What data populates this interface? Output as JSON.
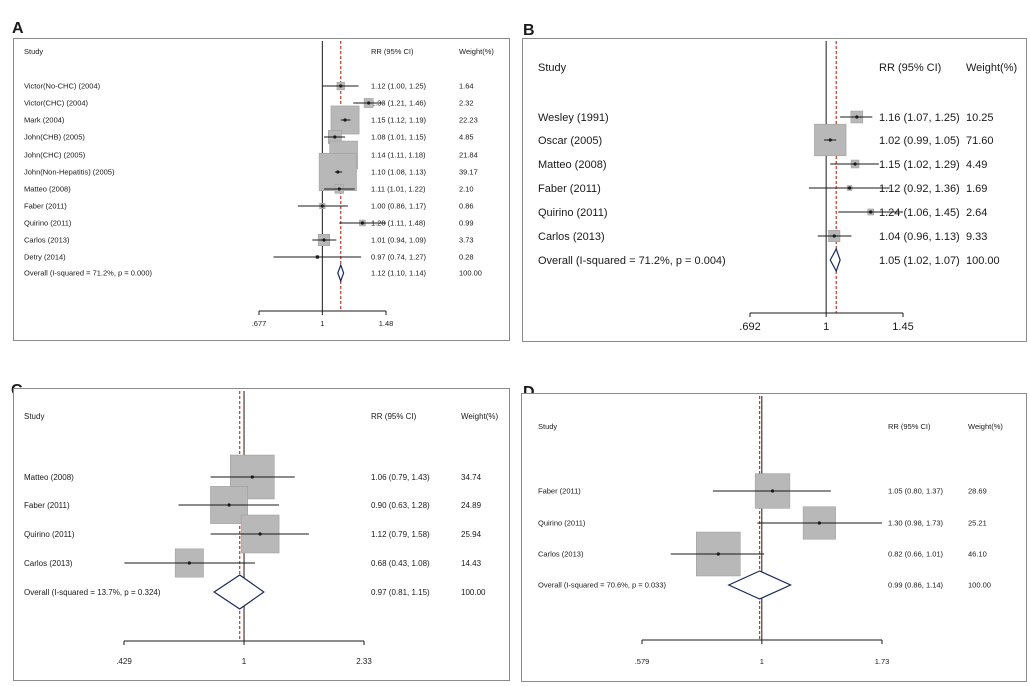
{
  "chart_data": [
    {
      "type": "forest",
      "panel_label": "A",
      "header": {
        "study": "Study",
        "rr": "RR (95% CI)",
        "weight": "Weight(%)"
      },
      "xlim": [
        0.677,
        1.48
      ],
      "xticks": [
        0.677,
        1,
        1.48
      ],
      "xtick_labels": [
        ".677",
        "1",
        "1.48"
      ],
      "studies": [
        {
          "label": "Victor(No-CHC) (2004)",
          "rr": 1.12,
          "lo": 1.0,
          "hi": 1.25,
          "ci_text": "1.12 (1.00, 1.25)",
          "weight": 1.64,
          "weight_text": "1.64"
        },
        {
          "label": "Victor(CHC) (2004)",
          "rr": 1.33,
          "lo": 1.21,
          "hi": 1.46,
          "ci_text": "1.33 (1.21, 1.46)",
          "weight": 2.32,
          "weight_text": "2.32"
        },
        {
          "label": "Mark (2004)",
          "rr": 1.15,
          "lo": 1.12,
          "hi": 1.19,
          "ci_text": "1.15 (1.12, 1.19)",
          "weight": 22.23,
          "weight_text": "22.23"
        },
        {
          "label": "John(CHB) (2005)",
          "rr": 1.08,
          "lo": 1.01,
          "hi": 1.15,
          "ci_text": "1.08 (1.01, 1.15)",
          "weight": 4.85,
          "weight_text": "4.85"
        },
        {
          "label": "John(CHC) (2005)",
          "rr": 1.14,
          "lo": 1.11,
          "hi": 1.18,
          "ci_text": "1.14 (1.11, 1.18)",
          "weight": 21.84,
          "weight_text": "21.84"
        },
        {
          "label": "John(Non-Hepatitis) (2005)",
          "rr": 1.1,
          "lo": 1.08,
          "hi": 1.13,
          "ci_text": "1.10 (1.08, 1.13)",
          "weight": 39.17,
          "weight_text": "39.17"
        },
        {
          "label": "Matteo (2008)",
          "rr": 1.11,
          "lo": 1.01,
          "hi": 1.22,
          "ci_text": "1.11 (1.01, 1.22)",
          "weight": 2.1,
          "weight_text": "2.10"
        },
        {
          "label": "Faber (2011)",
          "rr": 1.0,
          "lo": 0.86,
          "hi": 1.17,
          "ci_text": "1.00 (0.86, 1.17)",
          "weight": 0.86,
          "weight_text": "0.86"
        },
        {
          "label": "Quirino (2011)",
          "rr": 1.28,
          "lo": 1.11,
          "hi": 1.48,
          "ci_text": "1.28 (1.11, 1.48)",
          "weight": 0.99,
          "weight_text": "0.99"
        },
        {
          "label": "Carlos (2013)",
          "rr": 1.01,
          "lo": 0.94,
          "hi": 1.09,
          "ci_text": "1.01 (0.94, 1.09)",
          "weight": 3.73,
          "weight_text": "3.73"
        },
        {
          "label": "Detry (2014)",
          "rr": 0.97,
          "lo": 0.74,
          "hi": 1.27,
          "ci_text": "0.97 (0.74, 1.27)",
          "weight": 0.28,
          "weight_text": "0.28"
        }
      ],
      "overall": {
        "label": "Overall  (I-squared = 71.2%, p = 0.000)",
        "rr": 1.12,
        "lo": 1.1,
        "hi": 1.14,
        "ci_text": "1.12 (1.10, 1.14)",
        "weight_text": "100.00"
      }
    },
    {
      "type": "forest",
      "panel_label": "B",
      "header": {
        "study": "Study",
        "rr": "RR (95% CI)",
        "weight": "Weight(%)"
      },
      "xlim": [
        0.692,
        1.45
      ],
      "xticks": [
        0.692,
        1,
        1.45
      ],
      "xtick_labels": [
        ".692",
        "1",
        "1.45"
      ],
      "studies": [
        {
          "label": "Wesley (1991)",
          "rr": 1.16,
          "lo": 1.07,
          "hi": 1.25,
          "ci_text": "1.16 (1.07, 1.25)",
          "weight": 10.25,
          "weight_text": "10.25"
        },
        {
          "label": "Oscar (2005)",
          "rr": 1.02,
          "lo": 0.99,
          "hi": 1.05,
          "ci_text": "1.02 (0.99, 1.05)",
          "weight": 71.6,
          "weight_text": "71.60"
        },
        {
          "label": "Matteo (2008)",
          "rr": 1.15,
          "lo": 1.02,
          "hi": 1.29,
          "ci_text": "1.15 (1.02, 1.29)",
          "weight": 4.49,
          "weight_text": "4.49"
        },
        {
          "label": "Faber (2011)",
          "rr": 1.12,
          "lo": 0.92,
          "hi": 1.36,
          "ci_text": "1.12 (0.92, 1.36)",
          "weight": 1.69,
          "weight_text": "1.69"
        },
        {
          "label": "Quirino (2011)",
          "rr": 1.24,
          "lo": 1.06,
          "hi": 1.45,
          "ci_text": "1.24 (1.06, 1.45)",
          "weight": 2.64,
          "weight_text": "2.64"
        },
        {
          "label": "Carlos (2013)",
          "rr": 1.04,
          "lo": 0.96,
          "hi": 1.13,
          "ci_text": "1.04 (0.96, 1.13)",
          "weight": 9.33,
          "weight_text": "9.33"
        }
      ],
      "overall": {
        "label": "Overall  (I-squared = 71.2%, p = 0.004)",
        "rr": 1.05,
        "lo": 1.02,
        "hi": 1.07,
        "ci_text": "1.05 (1.02, 1.07)",
        "weight_text": "100.00"
      }
    },
    {
      "type": "forest",
      "panel_label": "C",
      "header": {
        "study": "Study",
        "rr": "RR (95% CI)",
        "weight": "Weight(%)"
      },
      "xlim": [
        0.429,
        2.33
      ],
      "xticks": [
        0.429,
        1,
        2.33
      ],
      "xtick_labels": [
        ".429",
        "1",
        "2.33"
      ],
      "studies": [
        {
          "label": "Matteo (2008)",
          "rr": 1.06,
          "lo": 0.79,
          "hi": 1.43,
          "ci_text": "1.06 (0.79, 1.43)",
          "weight": 34.74,
          "weight_text": "34.74"
        },
        {
          "label": "Faber (2011)",
          "rr": 0.9,
          "lo": 0.63,
          "hi": 1.28,
          "ci_text": "0.90 (0.63, 1.28)",
          "weight": 24.89,
          "weight_text": "24.89"
        },
        {
          "label": "Quirino (2011)",
          "rr": 1.12,
          "lo": 0.79,
          "hi": 1.58,
          "ci_text": "1.12 (0.79, 1.58)",
          "weight": 25.94,
          "weight_text": "25.94"
        },
        {
          "label": "Carlos (2013)",
          "rr": 0.68,
          "lo": 0.43,
          "hi": 1.08,
          "ci_text": "0.68 (0.43, 1.08)",
          "weight": 14.43,
          "weight_text": "14.43"
        }
      ],
      "overall": {
        "label": "Overall  (I-squared = 13.7%, p = 0.324)",
        "rr": 0.97,
        "lo": 0.81,
        "hi": 1.15,
        "ci_text": "0.97 (0.81, 1.15)",
        "weight_text": "100.00"
      }
    },
    {
      "type": "forest",
      "panel_label": "D",
      "header": {
        "study": "Study",
        "rr": "RR (95% CI)",
        "weight": "Weight(%)"
      },
      "xlim": [
        0.579,
        1.73
      ],
      "xticks": [
        0.579,
        1,
        1.73
      ],
      "xtick_labels": [
        ".579",
        "1",
        "1.73"
      ],
      "studies": [
        {
          "label": "Faber (2011)",
          "rr": 1.05,
          "lo": 0.8,
          "hi": 1.37,
          "ci_text": "1.05 (0.80, 1.37)",
          "weight": 28.69,
          "weight_text": "28.69"
        },
        {
          "label": "Quirino (2011)",
          "rr": 1.3,
          "lo": 0.98,
          "hi": 1.73,
          "ci_text": "1.30 (0.98, 1.73)",
          "weight": 25.21,
          "weight_text": "25.21"
        },
        {
          "label": "Carlos (2013)",
          "rr": 0.82,
          "lo": 0.66,
          "hi": 1.01,
          "ci_text": "0.82 (0.66, 1.01)",
          "weight": 46.1,
          "weight_text": "46.10"
        }
      ],
      "overall": {
        "label": "Overall  (I-squared = 70.6%, p = 0.033)",
        "rr": 0.99,
        "lo": 0.86,
        "hi": 1.14,
        "ci_text": "0.99 (0.86, 1.14)",
        "weight_text": "100.00"
      }
    }
  ]
}
